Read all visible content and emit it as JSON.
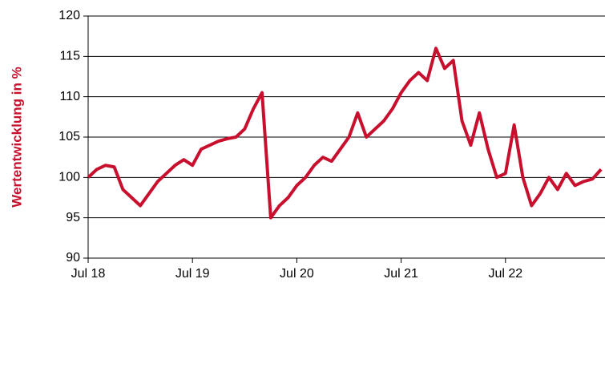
{
  "chart_data": {
    "type": "line",
    "ylabel": "Wertentwicklung in %",
    "categories": [
      "Jul 18",
      null,
      null,
      null,
      null,
      null,
      null,
      null,
      null,
      null,
      null,
      null,
      "Jul 19",
      null,
      null,
      null,
      null,
      null,
      null,
      null,
      null,
      null,
      null,
      null,
      "Jul 20",
      null,
      null,
      null,
      null,
      null,
      null,
      null,
      null,
      null,
      null,
      null,
      "Jul 21",
      null,
      null,
      null,
      null,
      null,
      null,
      null,
      null,
      null,
      null,
      null,
      "Jul 22",
      null,
      null,
      null,
      null,
      null,
      null,
      null,
      null,
      null,
      null,
      null
    ],
    "series": [
      {
        "color": "#c8102e",
        "values": [
          100,
          101,
          101.5,
          101.3,
          98.5,
          97.5,
          96.5,
          98,
          99.5,
          100.5,
          101.5,
          102.2,
          101.5,
          103.5,
          104,
          104.5,
          104.8,
          105,
          106,
          108.5,
          110.5,
          95,
          96.5,
          97.5,
          99,
          100,
          101.5,
          102.5,
          102,
          103.5,
          105,
          108,
          105,
          106,
          107,
          108.5,
          110.5,
          112,
          113,
          112,
          116,
          113.5,
          114.5,
          107,
          104,
          108,
          103.5,
          100,
          100.5,
          106.5,
          100,
          96.5,
          98,
          100,
          98.5,
          100.5,
          99,
          99.5,
          99.8,
          101
        ]
      }
    ],
    "ylim": [
      90,
      120
    ],
    "yticks": [
      90,
      95,
      100,
      105,
      110,
      115,
      120
    ],
    "grid": true
  }
}
